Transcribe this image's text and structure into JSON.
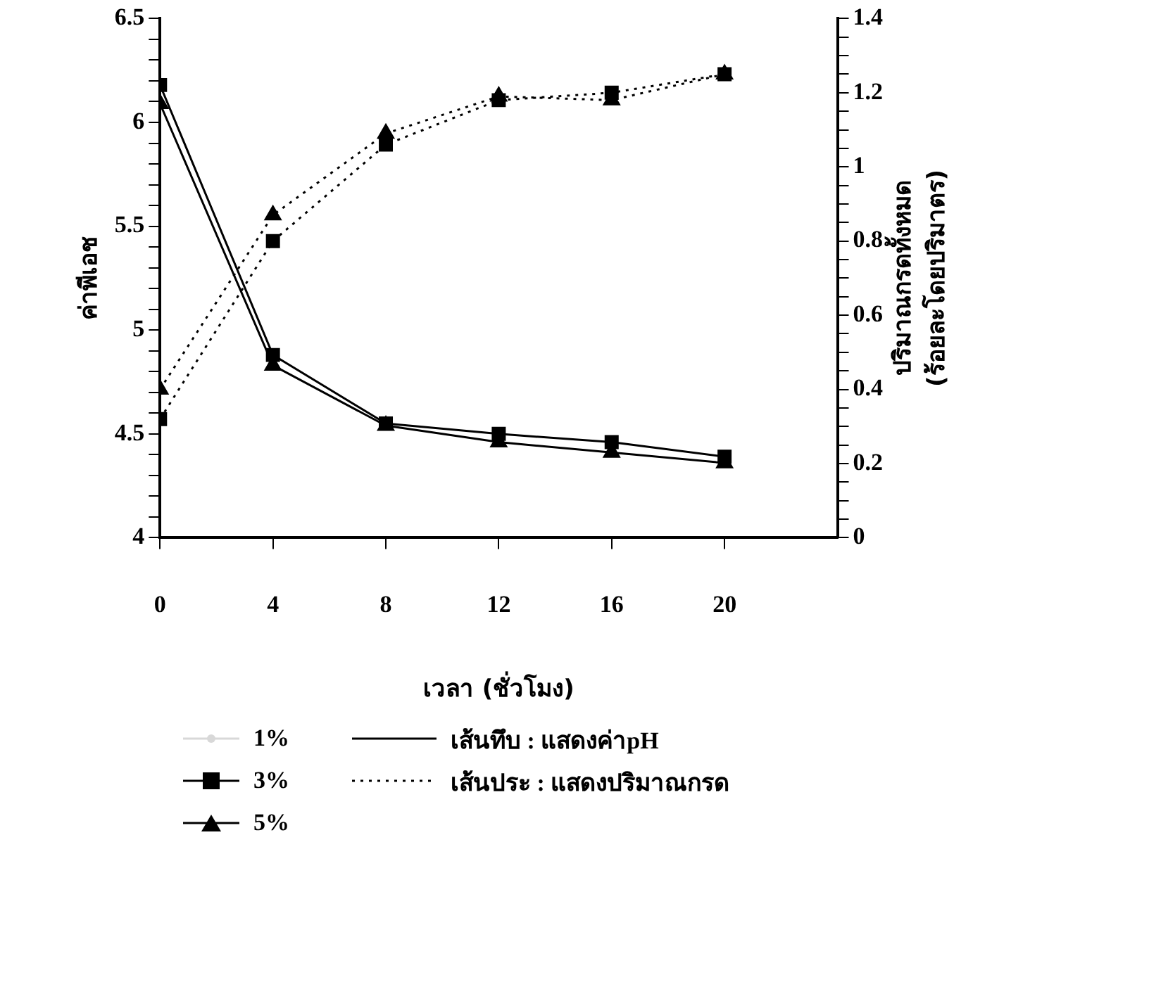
{
  "chart_data": {
    "type": "line",
    "xlabel": "เวลา (ชั่วโมง)",
    "ylabel": "ค่าพีเอช",
    "y2label": "ปริมาณกรดทั้งหมด\n(ร้อยละโดยปริมาตร)",
    "x": [
      0,
      4,
      8,
      12,
      16,
      20
    ],
    "xlim": [
      0,
      24
    ],
    "xticks": [
      0,
      4,
      8,
      12,
      16,
      20
    ],
    "ylim": [
      4,
      6.5
    ],
    "yticks": [
      4,
      {
        "value": 4.1,
        "label": null
      },
      {
        "value": 4.2,
        "label": null
      },
      {
        "value": 4.3,
        "label": null
      },
      {
        "value": 4.4,
        "label": null
      },
      4.5,
      {
        "value": 4.6,
        "label": null
      },
      {
        "value": 4.7,
        "label": null
      },
      {
        "value": 4.8,
        "label": null
      },
      {
        "value": 4.9,
        "label": null
      },
      5,
      {
        "value": 5.1,
        "label": null
      },
      {
        "value": 5.2,
        "label": null
      },
      {
        "value": 5.3,
        "label": null
      },
      {
        "value": 5.4,
        "label": null
      },
      5.5,
      {
        "value": 5.6,
        "label": null
      },
      {
        "value": 5.7,
        "label": null
      },
      {
        "value": 5.8,
        "label": null
      },
      {
        "value": 5.9,
        "label": null
      },
      6,
      {
        "value": 6.1,
        "label": null
      },
      {
        "value": 6.2,
        "label": null
      },
      {
        "value": 6.3,
        "label": null
      },
      {
        "value": 6.4,
        "label": null
      },
      6.5
    ],
    "y2lim": [
      0,
      1.4
    ],
    "y2ticks": [
      0,
      {
        "value": 0.05,
        "label": null
      },
      {
        "value": 0.1,
        "label": null
      },
      {
        "value": 0.15,
        "label": null
      },
      0.2,
      {
        "value": 0.25,
        "label": null
      },
      {
        "value": 0.3,
        "label": null
      },
      {
        "value": 0.35,
        "label": null
      },
      0.4,
      {
        "value": 0.45,
        "label": null
      },
      {
        "value": 0.5,
        "label": null
      },
      {
        "value": 0.55,
        "label": null
      },
      0.6,
      {
        "value": 0.65,
        "label": null
      },
      {
        "value": 0.7,
        "label": null
      },
      {
        "value": 0.75,
        "label": null
      },
      0.8,
      {
        "value": 0.85,
        "label": null
      },
      {
        "value": 0.9,
        "label": null
      },
      {
        "value": 0.95,
        "label": null
      },
      1,
      {
        "value": 1.05,
        "label": null
      },
      {
        "value": 1.1,
        "label": null
      },
      {
        "value": 1.15,
        "label": null
      },
      1.2,
      {
        "value": 1.25,
        "label": null
      },
      {
        "value": 1.3,
        "label": null
      },
      {
        "value": 1.35,
        "label": null
      },
      1.4
    ],
    "grid": false,
    "legend": "bottom left",
    "series": [
      {
        "name": "1%",
        "color": "#d8d8d8",
        "values": [
          null,
          null,
          null,
          null,
          null,
          null
        ],
        "axis": "y",
        "marker": "circle",
        "line_style": "solid"
      },
      {
        "name": "3%",
        "color": "#000000",
        "values": [
          6.18,
          4.88,
          4.55,
          4.5,
          4.46,
          4.39
        ],
        "axis": "y",
        "marker": "square",
        "line_style": "solid"
      },
      {
        "name": "5%",
        "color": "#000000",
        "values": [
          6.09,
          4.83,
          4.54,
          4.46,
          4.41,
          4.36
        ],
        "axis": "y",
        "marker": "triangle",
        "line_style": "solid"
      },
      {
        "color": "#000000",
        "values": [
          0.32,
          0.8,
          1.06,
          1.18,
          1.2,
          1.25
        ],
        "axis": "y2",
        "marker": "square",
        "line_style": "dotted"
      },
      {
        "color": "#000000",
        "values": [
          0.4,
          0.87,
          1.09,
          1.19,
          1.18,
          1.25
        ],
        "axis": "y2",
        "marker": "triangle",
        "line_style": "dotted"
      }
    ],
    "annotations": [
      "เส้นทึบ : แสดงค่าpH",
      "เส้นประ : แสดงปริมาณกรด"
    ]
  }
}
